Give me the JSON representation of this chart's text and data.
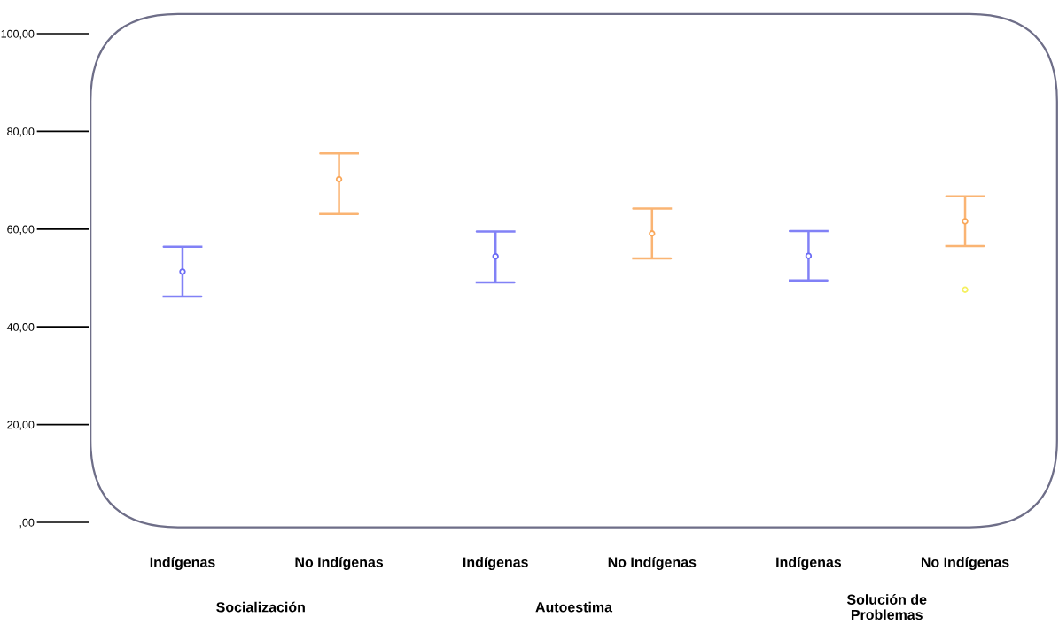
{
  "chart_data": {
    "type": "scatter",
    "categories": [
      "Indígenas",
      "No Indígenas",
      "Indígenas",
      "No Indígenas",
      "Indígenas",
      "No Indígenas"
    ],
    "values": [
      51.3,
      70.2,
      54.4,
      59.1,
      54.5,
      61.6
    ],
    "colors": [
      "#6b6bf5",
      "#f9a75a",
      "#6b6bf5",
      "#f9a75a",
      "#6b6bf5",
      "#f9a75a"
    ],
    "errors": [
      [
        46.2,
        56.4
      ],
      [
        63.1,
        75.5
      ],
      [
        49.1,
        59.5
      ],
      [
        54.0,
        64.2
      ],
      [
        49.5,
        59.6
      ],
      [
        56.5,
        66.7
      ]
    ],
    "series": [
      {
        "color": "#f5f060",
        "values": [
          null,
          null,
          null,
          null,
          null,
          47.6
        ]
      }
    ],
    "annotations": [
      "Socialización",
      "Autoestima",
      "Solución de\nProblemas"
    ],
    "ylim": [
      0,
      100
    ],
    "yticks": [
      {
        "value": 0,
        "label": ",00"
      },
      {
        "value": 20,
        "label": "20,00"
      },
      {
        "value": 40,
        "label": "40,00"
      },
      {
        "value": 60,
        "label": "60,00"
      },
      {
        "value": 80,
        "label": "80,00"
      },
      {
        "value": 100,
        "label": "100,00"
      }
    ],
    "marker": "circle",
    "grid": false,
    "legend": false
  }
}
